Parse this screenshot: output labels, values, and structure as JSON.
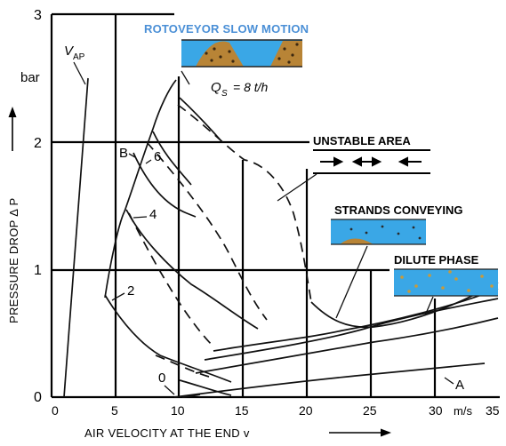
{
  "y_axis": {
    "label": "PRESSURE DROP Δ P",
    "unit": "bar",
    "ticks": [
      "0",
      "1",
      "2",
      "3"
    ]
  },
  "x_axis": {
    "label": "AIR VELOCITY AT THE END  v",
    "unit": "m/s",
    "ticks": [
      "0",
      "5",
      "10",
      "15",
      "20",
      "25",
      "30",
      "35"
    ]
  },
  "curve_labels": {
    "vap_main": "V",
    "vap_sub": "AP",
    "b": "B",
    "c6": "6",
    "c4": "4",
    "c2": "2",
    "c0": "0",
    "a": "A",
    "qs_main": "Q",
    "qs_sub": "S",
    "qs_value": "= 8 t/h"
  },
  "callouts": {
    "rotoveyor": "ROTOVEYOR SLOW MOTION",
    "unstable": "UNSTABLE AREA",
    "strands": "STRANDS CONVEYING",
    "dilute": "DILUTE PHASE"
  },
  "colors": {
    "rotoveyor_title": "#4a8fd6",
    "pipe_air": "#3aa7e6",
    "material": "#b88436",
    "lines": "#111111"
  }
}
